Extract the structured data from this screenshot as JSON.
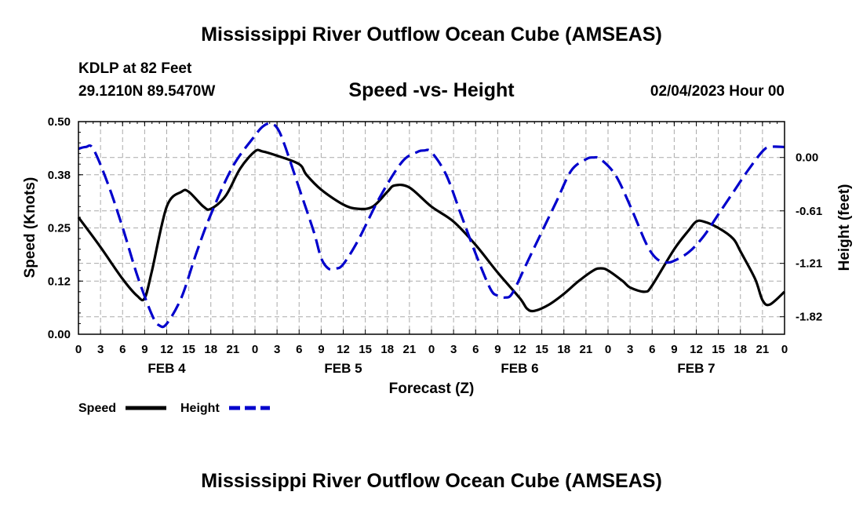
{
  "header": {
    "title": "Mississippi River Outflow Ocean Cube (AMSEAS)",
    "station": "KDLP at 82 Feet",
    "coords": "29.1210N  89.5470W",
    "subtitle": "Speed -vs- Height",
    "run_time": "02/04/2023 Hour 00"
  },
  "footer": {
    "title": "Mississippi River Outflow Ocean Cube (AMSEAS)"
  },
  "colors": {
    "speed": "#000000",
    "height": "#0000cc",
    "grid": "#aaaaaa"
  },
  "chart_data": {
    "type": "line",
    "title": "Speed -vs- Height",
    "xlabel": "Forecast (Z)",
    "ylabel": "Speed (Knots)",
    "y2label": "Height (feet)",
    "xlim": [
      0,
      96
    ],
    "ylim": [
      0,
      0.5
    ],
    "y2lim": [
      -2.02,
      0.41
    ],
    "x_ticks": [
      0,
      3,
      6,
      9,
      12,
      15,
      18,
      21,
      24,
      27,
      30,
      33,
      36,
      39,
      42,
      45,
      48,
      51,
      54,
      57,
      60,
      63,
      66,
      69,
      72,
      75,
      78,
      81,
      84,
      87,
      90,
      93,
      96
    ],
    "x_tick_labels": [
      "0",
      "3",
      "6",
      "9",
      "12",
      "15",
      "18",
      "21",
      "0",
      "3",
      "6",
      "9",
      "12",
      "15",
      "18",
      "21",
      "0",
      "3",
      "6",
      "9",
      "12",
      "15",
      "18",
      "21",
      "0",
      "3",
      "6",
      "9",
      "12",
      "15",
      "18",
      "21",
      "0"
    ],
    "day_labels": [
      {
        "x": 12,
        "label": "FEB 4"
      },
      {
        "x": 36,
        "label": "FEB 5"
      },
      {
        "x": 60,
        "label": "FEB 6"
      },
      {
        "x": 84,
        "label": "FEB 7"
      }
    ],
    "y_ticks": [
      0,
      0.125,
      0.25,
      0.375,
      0.5
    ],
    "y_tick_labels": [
      "0.00",
      "0.12",
      "0.25",
      "0.38",
      "0.50"
    ],
    "y2_ticks": [
      0.0,
      -0.61,
      -1.21,
      -1.82
    ],
    "y2_tick_labels": [
      "0.00",
      "-0.61",
      "-1.21",
      "-1.82"
    ],
    "grid": true,
    "legend": {
      "placement": "bottom-left",
      "speed_label": "Speed",
      "height_label": "Height"
    },
    "series": [
      {
        "name": "Speed",
        "axis": "left",
        "style": "solid",
        "points": [
          [
            0,
            0.275
          ],
          [
            3,
            0.205
          ],
          [
            6,
            0.13
          ],
          [
            8,
            0.09
          ],
          [
            9,
            0.085
          ],
          [
            10,
            0.15
          ],
          [
            12,
            0.3
          ],
          [
            14,
            0.335
          ],
          [
            15,
            0.335
          ],
          [
            17,
            0.3
          ],
          [
            18,
            0.295
          ],
          [
            20,
            0.325
          ],
          [
            22,
            0.39
          ],
          [
            24,
            0.43
          ],
          [
            25,
            0.43
          ],
          [
            27,
            0.42
          ],
          [
            30,
            0.4
          ],
          [
            31,
            0.375
          ],
          [
            33,
            0.34
          ],
          [
            36,
            0.305
          ],
          [
            38,
            0.295
          ],
          [
            40,
            0.3
          ],
          [
            42,
            0.335
          ],
          [
            43,
            0.35
          ],
          [
            45,
            0.345
          ],
          [
            48,
            0.3
          ],
          [
            51,
            0.265
          ],
          [
            54,
            0.21
          ],
          [
            57,
            0.145
          ],
          [
            60,
            0.085
          ],
          [
            61,
            0.06
          ],
          [
            62,
            0.055
          ],
          [
            64,
            0.07
          ],
          [
            66,
            0.095
          ],
          [
            68,
            0.125
          ],
          [
            70,
            0.15
          ],
          [
            71,
            0.155
          ],
          [
            72,
            0.15
          ],
          [
            74,
            0.125
          ],
          [
            75,
            0.11
          ],
          [
            77,
            0.1
          ],
          [
            78,
            0.115
          ],
          [
            81,
            0.2
          ],
          [
            83,
            0.245
          ],
          [
            84,
            0.265
          ],
          [
            85,
            0.265
          ],
          [
            87,
            0.25
          ],
          [
            89,
            0.225
          ],
          [
            90,
            0.195
          ],
          [
            92,
            0.13
          ],
          [
            93,
            0.08
          ],
          [
            94,
            0.07
          ],
          [
            96,
            0.1
          ]
        ]
      },
      {
        "name": "Height",
        "axis": "right",
        "style": "dashed",
        "points": [
          [
            0,
            0.1
          ],
          [
            1,
            0.12
          ],
          [
            2,
            0.1
          ],
          [
            4,
            -0.3
          ],
          [
            6,
            -0.8
          ],
          [
            8,
            -1.35
          ],
          [
            10,
            -1.8
          ],
          [
            11,
            -1.92
          ],
          [
            12,
            -1.9
          ],
          [
            14,
            -1.6
          ],
          [
            16,
            -1.1
          ],
          [
            18,
            -0.65
          ],
          [
            21,
            -0.1
          ],
          [
            24,
            0.25
          ],
          [
            25,
            0.35
          ],
          [
            26,
            0.39
          ],
          [
            27,
            0.34
          ],
          [
            28,
            0.15
          ],
          [
            30,
            -0.35
          ],
          [
            32,
            -0.85
          ],
          [
            33,
            -1.15
          ],
          [
            34,
            -1.27
          ],
          [
            35,
            -1.27
          ],
          [
            36,
            -1.22
          ],
          [
            38,
            -0.95
          ],
          [
            41,
            -0.45
          ],
          [
            44,
            -0.05
          ],
          [
            46,
            0.06
          ],
          [
            47,
            0.08
          ],
          [
            48,
            0.06
          ],
          [
            50,
            -0.2
          ],
          [
            52,
            -0.65
          ],
          [
            54,
            -1.1
          ],
          [
            56,
            -1.5
          ],
          [
            57,
            -1.58
          ],
          [
            58,
            -1.6
          ],
          [
            59,
            -1.55
          ],
          [
            61,
            -1.2
          ],
          [
            63,
            -0.85
          ],
          [
            65,
            -0.5
          ],
          [
            67,
            -0.15
          ],
          [
            69,
            -0.02
          ],
          [
            70,
            0.0
          ],
          [
            71,
            -0.02
          ],
          [
            73,
            -0.2
          ],
          [
            75,
            -0.55
          ],
          [
            77,
            -0.95
          ],
          [
            78,
            -1.1
          ],
          [
            79,
            -1.18
          ],
          [
            80,
            -1.2
          ],
          [
            81,
            -1.18
          ],
          [
            83,
            -1.08
          ],
          [
            85,
            -0.9
          ],
          [
            87,
            -0.65
          ],
          [
            89,
            -0.4
          ],
          [
            91,
            -0.15
          ],
          [
            93,
            0.07
          ],
          [
            94,
            0.12
          ],
          [
            96,
            0.12
          ]
        ]
      }
    ]
  }
}
